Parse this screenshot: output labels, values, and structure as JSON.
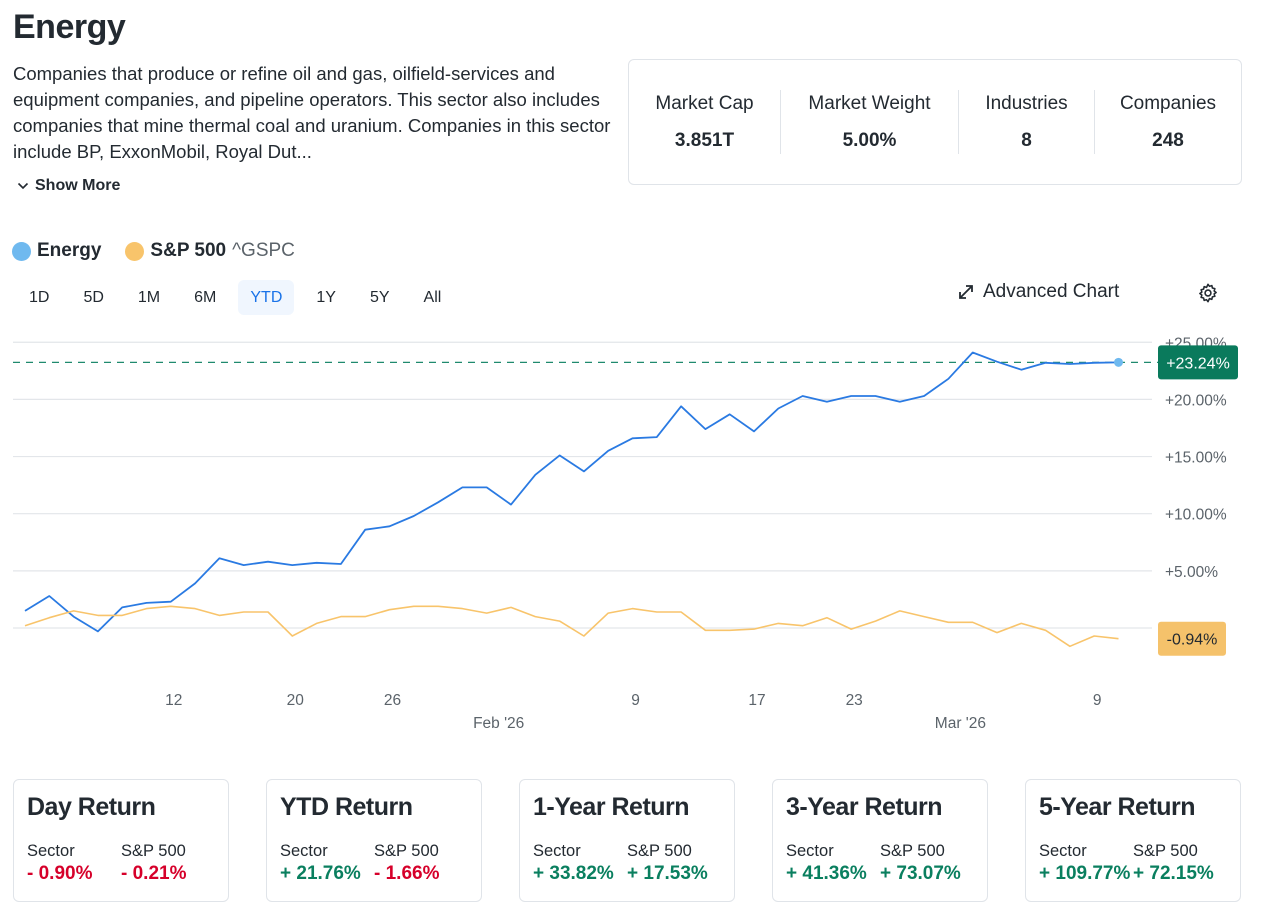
{
  "header": {
    "title": "Energy",
    "description": "Companies that produce or refine oil and gas, oilfield-services and equipment companies, and pipeline operators. This sector also includes companies that mine thermal coal and uranium. Companies in this sector include BP, ExxonMobil, Royal Dut...",
    "show_more": "Show More"
  },
  "stats": [
    {
      "label": "Market Cap",
      "value": "3.851T"
    },
    {
      "label": "Market Weight",
      "value": "5.00%"
    },
    {
      "label": "Industries",
      "value": "8"
    },
    {
      "label": "Companies",
      "value": "248"
    }
  ],
  "legend": {
    "energy": "Energy",
    "sp500": "S&P 500",
    "sp500_symbol": "^GSPC"
  },
  "ranges": [
    "1D",
    "5D",
    "1M",
    "6M",
    "YTD",
    "1Y",
    "5Y",
    "All"
  ],
  "active_range": "YTD",
  "toolbar": {
    "advanced_chart": "Advanced Chart",
    "expand_icon": "expand-arrows-icon",
    "settings_icon": "gear-icon"
  },
  "colors": {
    "energy": "#2a7ae2",
    "energy_dot": "#6fb9ef",
    "sp500": "#f8c46b",
    "badge_green": "#0a7a5c",
    "badge_orange": "#f5c26b",
    "positive": "#0a7f5f",
    "negative": "#d6002a",
    "accent": "#1a73e8"
  },
  "chart_data": {
    "type": "line",
    "title": "",
    "xlabel": "",
    "ylabel": "",
    "ylim": [
      -5,
      25
    ],
    "yticks": [
      "+25.00%",
      "+20.00%",
      "+15.00%",
      "+10.00%",
      "+5.00%"
    ],
    "ytick_values": [
      25,
      20,
      15,
      10,
      5
    ],
    "xtick_labels": [
      {
        "label": "12",
        "index": 6
      },
      {
        "label": "20",
        "index": 11
      },
      {
        "label": "26",
        "index": 15
      },
      {
        "label": "9",
        "index": 25
      },
      {
        "label": "17",
        "index": 30
      },
      {
        "label": "23",
        "index": 34
      },
      {
        "label": "9",
        "index": 44
      }
    ],
    "month_labels": [
      {
        "label": "Feb '26",
        "index": 19
      },
      {
        "label": "Mar '26",
        "index": 38
      }
    ],
    "grid": true,
    "legend": "top-left",
    "series": [
      {
        "name": "Energy",
        "values": [
          1.5,
          2.8,
          1.0,
          -0.3,
          1.8,
          2.2,
          2.3,
          3.9,
          6.1,
          5.5,
          5.8,
          5.5,
          5.7,
          5.6,
          8.6,
          8.9,
          9.8,
          11.0,
          12.3,
          12.3,
          10.8,
          13.4,
          15.1,
          13.7,
          15.5,
          16.6,
          16.7,
          19.4,
          17.4,
          18.7,
          17.2,
          19.2,
          20.3,
          19.8,
          20.3,
          20.3,
          19.8,
          20.3,
          21.8,
          24.1,
          23.3,
          22.6,
          23.2,
          23.1,
          23.2,
          23.24
        ]
      },
      {
        "name": "S&P 500",
        "values": [
          0.2,
          0.9,
          1.5,
          1.1,
          1.1,
          1.7,
          1.9,
          1.7,
          1.1,
          1.4,
          1.4,
          -0.7,
          0.4,
          1.0,
          1.0,
          1.6,
          1.9,
          1.9,
          1.7,
          1.3,
          1.8,
          1.0,
          0.6,
          -0.7,
          1.3,
          1.7,
          1.4,
          1.4,
          -0.2,
          -0.2,
          -0.1,
          0.4,
          0.2,
          0.9,
          -0.1,
          0.6,
          1.5,
          1.0,
          0.5,
          0.5,
          -0.4,
          0.4,
          -0.2,
          -1.6,
          -0.7,
          -0.94
        ]
      }
    ],
    "current_labels": {
      "energy": "+23.24%",
      "sp500": "-0.94%"
    },
    "reference_line_value": 23.24
  },
  "returns": [
    {
      "title": "Day Return",
      "sector_label": "Sector",
      "sp_label": "S&P 500",
      "sector": "- 0.90%",
      "sp": "- 0.21%",
      "sector_sign": "neg",
      "sp_sign": "neg"
    },
    {
      "title": "YTD Return",
      "sector_label": "Sector",
      "sp_label": "S&P 500",
      "sector": "+ 21.76%",
      "sp": "- 1.66%",
      "sector_sign": "pos",
      "sp_sign": "neg"
    },
    {
      "title": "1-Year Return",
      "sector_label": "Sector",
      "sp_label": "S&P 500",
      "sector": "+ 33.82%",
      "sp": "+ 17.53%",
      "sector_sign": "pos",
      "sp_sign": "pos"
    },
    {
      "title": "3-Year Return",
      "sector_label": "Sector",
      "sp_label": "S&P 500",
      "sector": "+ 41.36%",
      "sp": "+ 73.07%",
      "sector_sign": "pos",
      "sp_sign": "pos"
    },
    {
      "title": "5-Year Return",
      "sector_label": "Sector",
      "sp_label": "S&P 500",
      "sector": "+ 109.77%",
      "sp": "+ 72.15%",
      "sector_sign": "pos",
      "sp_sign": "pos"
    }
  ]
}
